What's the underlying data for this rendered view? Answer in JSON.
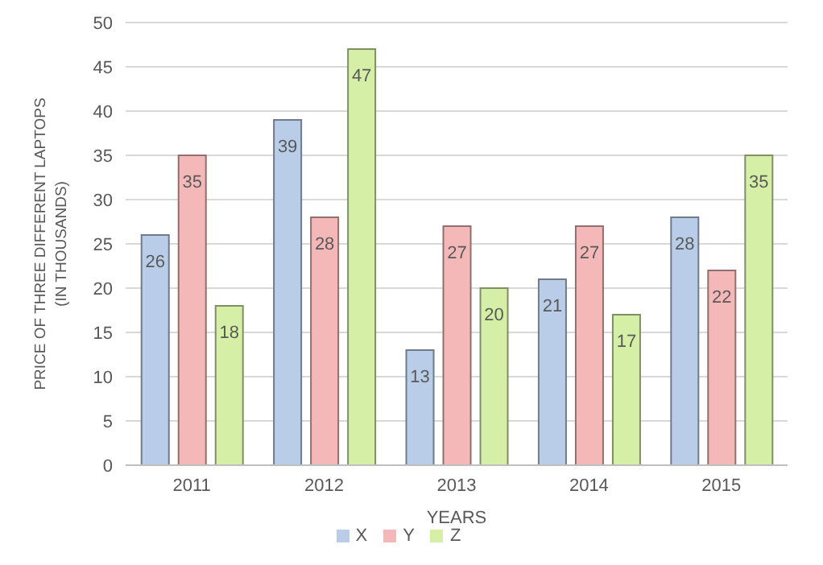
{
  "chart_data": {
    "type": "bar",
    "xlabel": "YEARS",
    "ylabel": "PRICE OF THREE DIFFERENT LAPTOPS\n(IN THOUSANDS)",
    "categories": [
      "2011",
      "2012",
      "2013",
      "2014",
      "2015"
    ],
    "series": [
      {
        "name": "X",
        "color": "#b9cde8",
        "values": [
          26,
          39,
          13,
          21,
          28
        ]
      },
      {
        "name": "Y",
        "color": "#f5b8b8",
        "values": [
          35,
          28,
          27,
          27,
          22
        ]
      },
      {
        "name": "Z",
        "color": "#d5efa6",
        "values": [
          18,
          47,
          20,
          17,
          35
        ]
      }
    ],
    "ylim": [
      0,
      50
    ],
    "yticks": [
      0,
      5,
      10,
      15,
      20,
      25,
      30,
      35,
      40,
      45,
      50
    ],
    "grid": "y",
    "legend": "bottom",
    "data_labels": true
  }
}
